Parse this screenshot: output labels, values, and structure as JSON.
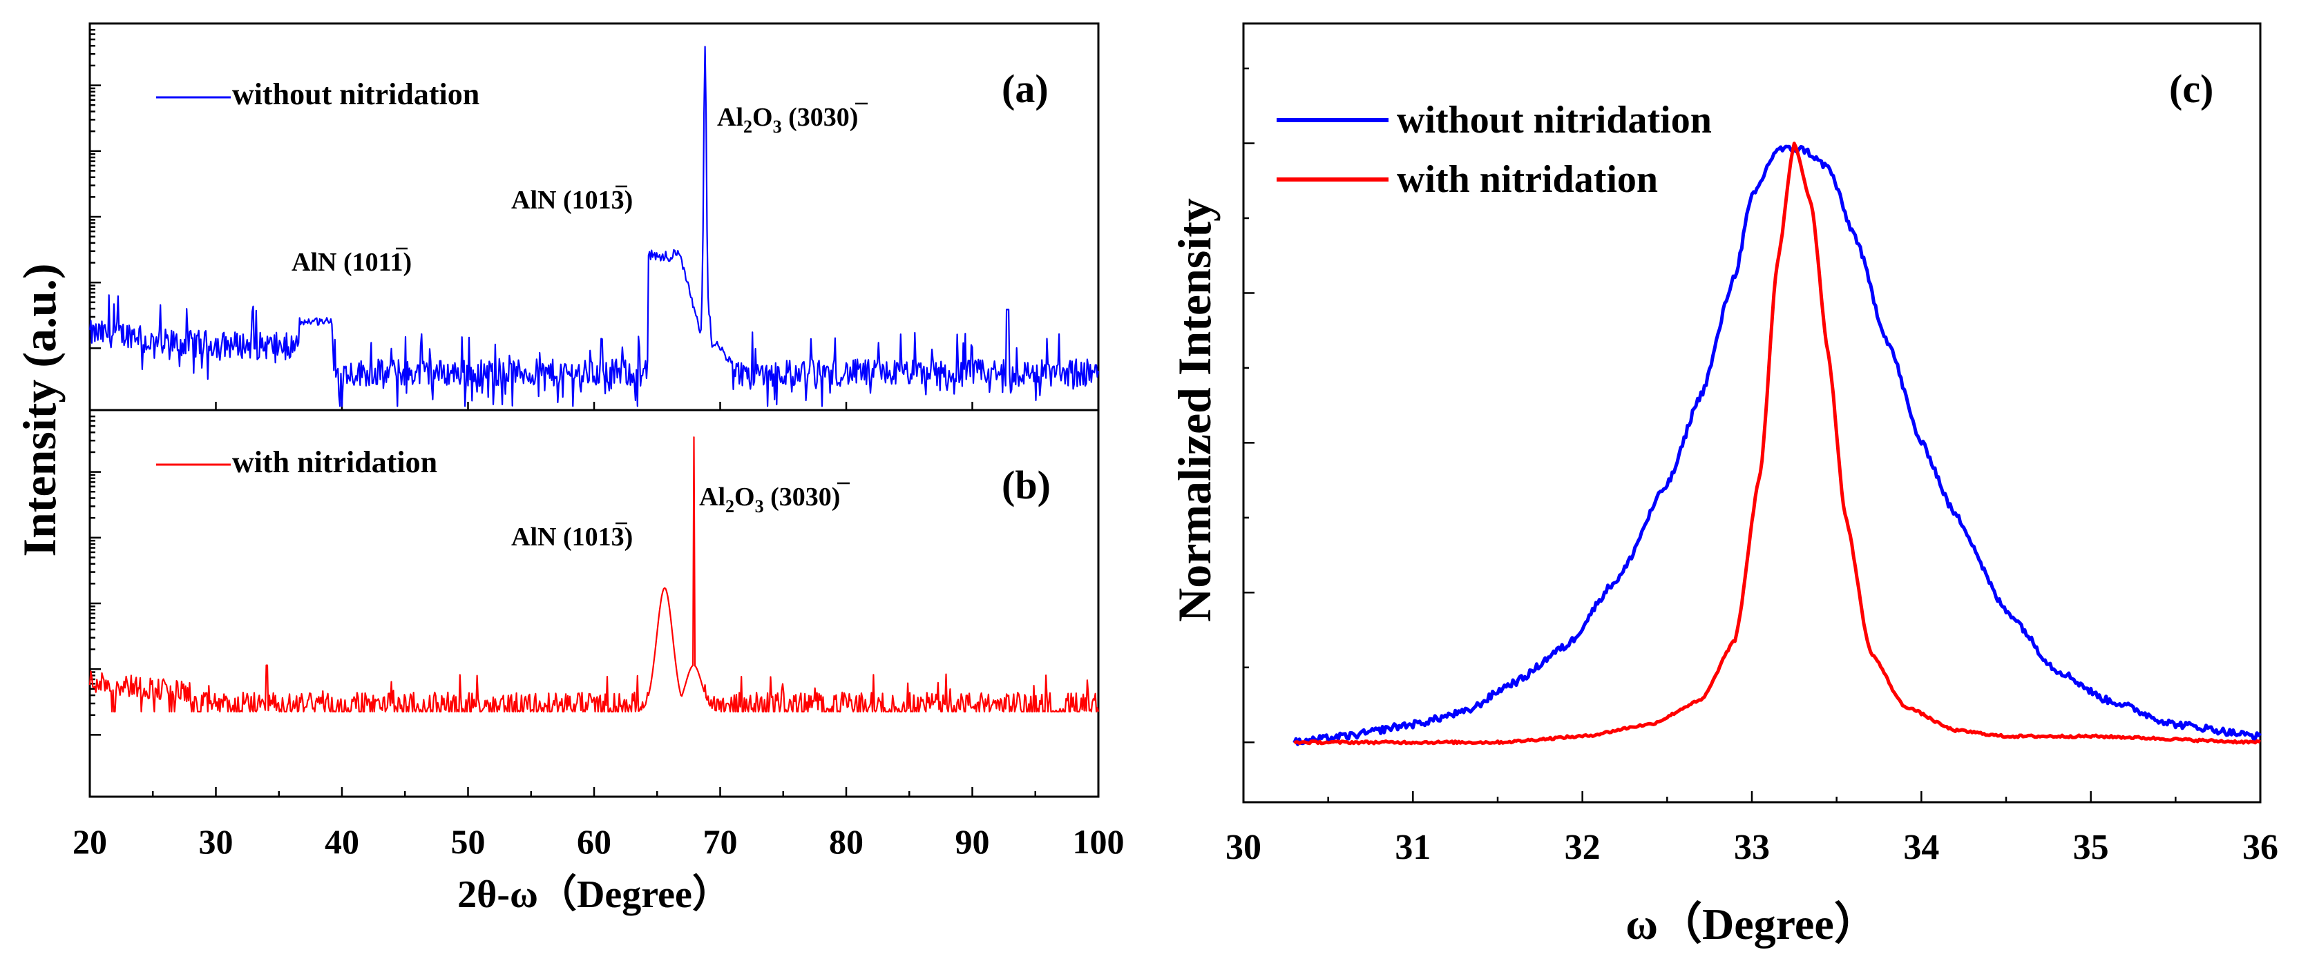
{
  "chart_data": [
    {
      "id": "a",
      "type": "line",
      "panel_label": "(a)",
      "legend": "without nitridation",
      "color": "#0000ff",
      "x_range": [
        20,
        100
      ],
      "y_scale": "log",
      "xlabel": "2θ-ω（Degree）",
      "ylabel": "Intensity (a.u.)",
      "x_ticks": [
        "20",
        "30",
        "40",
        "50",
        "60",
        "70",
        "80",
        "90",
        "100"
      ],
      "noise_profile": [
        [
          20,
          0.06
        ],
        [
          24,
          0.05
        ],
        [
          30,
          0.05
        ],
        [
          36,
          0.05
        ],
        [
          36.5,
          0.1
        ],
        [
          39.2,
          0.1
        ],
        [
          39.5,
          0.0
        ],
        [
          64,
          0.0
        ]
      ],
      "peaks": [
        {
          "label_main": "AlN (10",
          "label_over": "1",
          "label_end": "1)",
          "x": 37.8,
          "shape": "plateau",
          "x_start": 36.6,
          "x_end": 39.2,
          "level": 0.24
        },
        {
          "label_main": "AlN (10",
          "label_over": "1",
          "label_end": "3)",
          "x": 65.7,
          "shape": "plateau",
          "x_start": 64.3,
          "x_end": 66.8,
          "level": 0.41
        },
        {
          "label_main": "Al",
          "label_sub1": "2",
          "label_mid": "O",
          "label_sub2": "3",
          "label_rest": " (30",
          "label_over": "3",
          "label_end": "0)",
          "x": 68.8,
          "shape": "sharp",
          "level": 0.94
        },
        {
          "x": 92.8,
          "shape": "spike",
          "level": 0.26
        }
      ]
    },
    {
      "id": "b",
      "type": "line",
      "panel_label": "(b)",
      "legend": "with nitridation",
      "color": "#ff0000",
      "x_range": [
        20,
        100
      ],
      "y_scale": "log",
      "peaks": [
        {
          "label_main": "AlN (10",
          "label_over": "1",
          "label_end": "3)",
          "x": 65.6,
          "shape": "gauss",
          "level": 0.55
        },
        {
          "label_main": "Al",
          "label_sub1": "2",
          "label_mid": "O",
          "label_sub2": "3",
          "label_rest": " (30",
          "label_over": "3",
          "label_end": "0)",
          "x": 67.9,
          "shape": "sharp",
          "level": 0.93
        },
        {
          "x": 34.0,
          "shape": "spike",
          "level": 0.24
        }
      ]
    },
    {
      "id": "c",
      "type": "line",
      "panel_label": "(c)",
      "xlabel": "ω（Degree）",
      "ylabel": "Normalized Intensity",
      "x_range": [
        30,
        36
      ],
      "y_range": [
        -0.1,
        1.2
      ],
      "x_ticks": [
        "30",
        "31",
        "32",
        "33",
        "34",
        "35",
        "36"
      ],
      "series": [
        {
          "name": "without nitridation",
          "color": "#0000ff",
          "points": [
            [
              30.3,
              0.0
            ],
            [
              30.6,
              0.01
            ],
            [
              31.0,
              0.03
            ],
            [
              31.3,
              0.05
            ],
            [
              31.6,
              0.1
            ],
            [
              31.9,
              0.16
            ],
            [
              32.2,
              0.27
            ],
            [
              32.5,
              0.43
            ],
            [
              32.7,
              0.58
            ],
            [
              32.9,
              0.78
            ],
            [
              33.0,
              0.91
            ],
            [
              33.15,
              0.99
            ],
            [
              33.3,
              0.99
            ],
            [
              33.45,
              0.96
            ],
            [
              33.6,
              0.85
            ],
            [
              33.8,
              0.67
            ],
            [
              34.0,
              0.5
            ],
            [
              34.2,
              0.38
            ],
            [
              34.5,
              0.22
            ],
            [
              34.8,
              0.12
            ],
            [
              35.1,
              0.07
            ],
            [
              35.5,
              0.03
            ],
            [
              36.0,
              0.01
            ]
          ]
        },
        {
          "name": "with nitridation",
          "color": "#ff0000",
          "points": [
            [
              30.3,
              0.0
            ],
            [
              31.5,
              0.0
            ],
            [
              32.0,
              0.01
            ],
            [
              32.4,
              0.03
            ],
            [
              32.7,
              0.07
            ],
            [
              32.9,
              0.17
            ],
            [
              33.05,
              0.45
            ],
            [
              33.15,
              0.8
            ],
            [
              33.25,
              1.0
            ],
            [
              33.35,
              0.9
            ],
            [
              33.45,
              0.65
            ],
            [
              33.55,
              0.38
            ],
            [
              33.7,
              0.15
            ],
            [
              33.9,
              0.06
            ],
            [
              34.2,
              0.02
            ],
            [
              34.5,
              0.01
            ],
            [
              35.0,
              0.01
            ],
            [
              36.0,
              0.0
            ]
          ]
        }
      ]
    }
  ]
}
